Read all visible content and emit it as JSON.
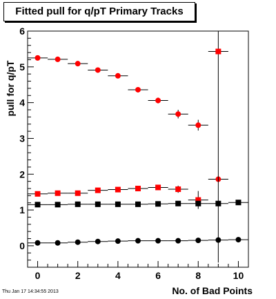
{
  "chart_data": {
    "type": "scatter",
    "title": "Fitted pull for q/pT Primary Tracks",
    "xlabel": "No. of Bad Points",
    "ylabel": "pull for q/pT",
    "xlim": [
      -0.5,
      10.5
    ],
    "ylim": [
      -0.6,
      6
    ],
    "x_ticks": [
      0,
      2,
      4,
      6,
      8,
      10
    ],
    "y_ticks": [
      0,
      1,
      2,
      3,
      4,
      5,
      6
    ],
    "grid": false,
    "series": [
      {
        "marker": "circle",
        "color": "#ff0000",
        "points": [
          {
            "x": 0,
            "y": 5.25,
            "ey": 0.03
          },
          {
            "x": 1,
            "y": 5.21,
            "ey": 0.03
          },
          {
            "x": 2,
            "y": 5.09,
            "ey": 0.04
          },
          {
            "x": 3,
            "y": 4.91,
            "ey": 0.05
          },
          {
            "x": 4,
            "y": 4.75,
            "ey": 0.06
          },
          {
            "x": 5,
            "y": 4.36,
            "ey": 0.06
          },
          {
            "x": 6,
            "y": 4.06,
            "ey": 0.08
          },
          {
            "x": 7,
            "y": 3.68,
            "ey": 0.12
          },
          {
            "x": 8,
            "y": 3.37,
            "ey": 0.15
          },
          {
            "x": 9,
            "y": 1.86,
            "ey": 0.05
          }
        ]
      },
      {
        "marker": "square",
        "color": "#ff0000",
        "points": [
          {
            "x": 0,
            "y": 1.45,
            "ey": 0.03
          },
          {
            "x": 1,
            "y": 1.47,
            "ey": 0.03
          },
          {
            "x": 2,
            "y": 1.47,
            "ey": 0.03
          },
          {
            "x": 3,
            "y": 1.55,
            "ey": 0.04
          },
          {
            "x": 4,
            "y": 1.57,
            "ey": 0.05
          },
          {
            "x": 5,
            "y": 1.6,
            "ey": 0.06
          },
          {
            "x": 6,
            "y": 1.63,
            "ey": 0.07
          },
          {
            "x": 7,
            "y": 1.58,
            "ey": 0.1
          },
          {
            "x": 8,
            "y": 1.28,
            "ey": 0.25
          },
          {
            "x": 9,
            "y": 5.43,
            "ey": 5.9
          }
        ]
      },
      {
        "marker": "square",
        "color": "#000000",
        "points": [
          {
            "x": 0,
            "y": 1.15,
            "ey": 0.02
          },
          {
            "x": 1,
            "y": 1.15,
            "ey": 0.02
          },
          {
            "x": 2,
            "y": 1.16,
            "ey": 0.02
          },
          {
            "x": 3,
            "y": 1.16,
            "ey": 0.02
          },
          {
            "x": 4,
            "y": 1.16,
            "ey": 0.02
          },
          {
            "x": 5,
            "y": 1.16,
            "ey": 0.02
          },
          {
            "x": 6,
            "y": 1.17,
            "ey": 0.02
          },
          {
            "x": 7,
            "y": 1.18,
            "ey": 0.02
          },
          {
            "x": 8,
            "y": 1.18,
            "ey": 0.03
          },
          {
            "x": 9,
            "y": 1.18,
            "ey": 0.03
          },
          {
            "x": 10,
            "y": 1.21,
            "ey": 0.03
          }
        ]
      },
      {
        "marker": "circle",
        "color": "#000000",
        "points": [
          {
            "x": 0,
            "y": 0.08,
            "ey": 0.01
          },
          {
            "x": 1,
            "y": 0.08,
            "ey": 0.01
          },
          {
            "x": 2,
            "y": 0.1,
            "ey": 0.01
          },
          {
            "x": 3,
            "y": 0.12,
            "ey": 0.01
          },
          {
            "x": 4,
            "y": 0.13,
            "ey": 0.01
          },
          {
            "x": 5,
            "y": 0.14,
            "ey": 0.01
          },
          {
            "x": 6,
            "y": 0.14,
            "ey": 0.01
          },
          {
            "x": 7,
            "y": 0.14,
            "ey": 0.01
          },
          {
            "x": 8,
            "y": 0.15,
            "ey": 0.01
          },
          {
            "x": 9,
            "y": 0.16,
            "ey": 0.02
          },
          {
            "x": 10,
            "y": 0.17,
            "ey": 0.02
          }
        ]
      }
    ]
  },
  "footer": {
    "timestamp": "Thu Jan 17 14:34:55 2013"
  }
}
